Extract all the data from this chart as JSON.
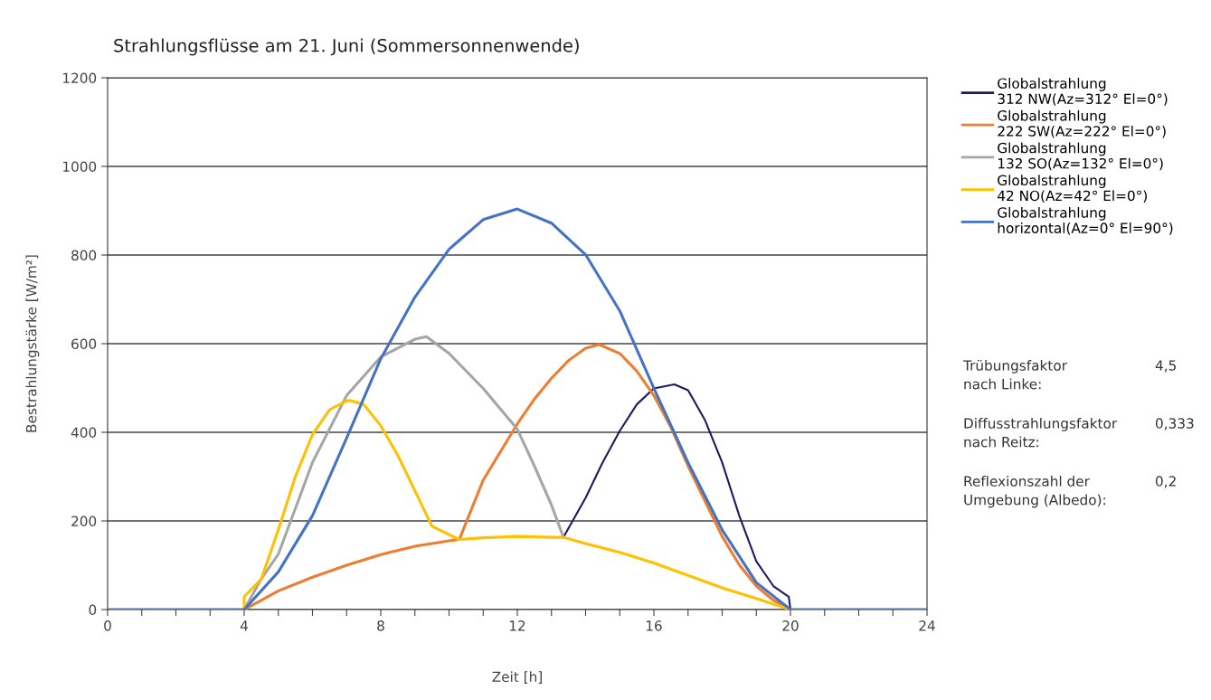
{
  "chart_data": {
    "type": "line",
    "title": "Strahlungsflüsse am 21. Juni (Sommersonnenwende)",
    "xlabel": "Zeit [h]",
    "ylabel": "Bestrahlungstärke [W/m²]",
    "xlim": [
      0,
      24
    ],
    "ylim": [
      0,
      1200
    ],
    "xticks": [
      0,
      {
        "value": 1,
        "label": null
      },
      {
        "value": 2,
        "label": null
      },
      {
        "value": 3,
        "label": null
      },
      4,
      {
        "value": 5,
        "label": null
      },
      {
        "value": 6,
        "label": null
      },
      {
        "value": 7,
        "label": null
      },
      8,
      {
        "value": 9,
        "label": null
      },
      {
        "value": 10,
        "label": null
      },
      {
        "value": 11,
        "label": null
      },
      12,
      {
        "value": 13,
        "label": null
      },
      {
        "value": 14,
        "label": null
      },
      {
        "value": 15,
        "label": null
      },
      16,
      {
        "value": 17,
        "label": null
      },
      {
        "value": 18,
        "label": null
      },
      {
        "value": 19,
        "label": null
      },
      20,
      {
        "value": 21,
        "label": null
      },
      {
        "value": 22,
        "label": null
      },
      {
        "value": 23,
        "label": null
      },
      24
    ],
    "yticks": [
      0,
      200,
      400,
      600,
      800,
      1000,
      1200
    ],
    "grid": "y",
    "legend": "right",
    "marker": "none",
    "line_style": "solid",
    "series": [
      {
        "name": "Globalstrahlung\n312 NW(Az=312° El=0°)",
        "color": "#1f1a5e",
        "x": [
          13.35,
          14,
          14.5,
          15,
          15.5,
          16,
          16.6,
          17,
          17.5,
          18,
          18.5,
          19,
          19.5,
          19.95,
          20
        ],
        "values": [
          163,
          252,
          332,
          403,
          463,
          499,
          508,
          495,
          427,
          332,
          212,
          109,
          53,
          29,
          0
        ]
      },
      {
        "name": "Globalstrahlung\n222 SW(Az=222° El=0°)",
        "color": "#ed7d31",
        "x": [
          4,
          5,
          6,
          7,
          8,
          9,
          10,
          10.3,
          11,
          12,
          12.5,
          13,
          13.5,
          14,
          14.4,
          15,
          15.5,
          16,
          16.5,
          17,
          17.5,
          18,
          18.5,
          19,
          19.5,
          20
        ],
        "values": [
          0,
          42,
          73,
          100,
          124,
          143,
          155,
          158,
          292,
          419,
          475,
          522,
          562,
          590,
          598,
          578,
          538,
          483,
          411,
          324,
          244,
          165,
          101,
          53,
          21,
          0
        ]
      },
      {
        "name": "Globalstrahlung\n132 SO(Az=132° El=0°)",
        "color": "#a5a5a5",
        "x": [
          4,
          4.5,
          5,
          5.5,
          6,
          7,
          8,
          9,
          9.34,
          10,
          11,
          12,
          12.5,
          13,
          13.35
        ],
        "values": [
          0,
          69,
          125,
          228,
          332,
          483,
          570,
          610,
          616,
          578,
          499,
          407,
          324,
          236,
          163
        ]
      },
      {
        "name": "Globalstrahlung\n42 NO(Az=42° El=0°)",
        "color": "#ffc000",
        "x": [
          4,
          4,
          4.5,
          5,
          5.5,
          6,
          6.5,
          7,
          7.1,
          7.5,
          8,
          8.5,
          9,
          9.5,
          10.3,
          11,
          12,
          13,
          13.35,
          14,
          15,
          16,
          17,
          18,
          19,
          20
        ],
        "values": [
          0,
          29,
          69,
          180,
          300,
          395,
          451,
          471,
          472,
          463,
          415,
          348,
          268,
          188,
          158,
          162,
          165,
          163,
          163,
          149,
          129,
          105,
          77,
          49,
          25,
          0
        ]
      },
      {
        "name": "Globalstrahlung\nhorizontal(Az=0° El=90°)",
        "color": "#4472c4",
        "x": [
          0,
          4,
          5,
          6,
          7,
          8,
          9,
          10,
          11,
          12,
          13,
          14,
          15,
          16,
          17,
          18,
          19,
          20,
          24
        ],
        "values": [
          0,
          0,
          85,
          212,
          387,
          566,
          705,
          813,
          880,
          904,
          872,
          801,
          674,
          499,
          332,
          180,
          61,
          0,
          0
        ]
      }
    ],
    "annotations": [
      "Trübungsfaktor\nnach Linke:",
      "4,5",
      "Diffusstrahlungsfaktor\nnach Reitz:",
      "0,333",
      "Reflexionszahl der\nUmgebung (Albedo):",
      "0,2"
    ]
  }
}
